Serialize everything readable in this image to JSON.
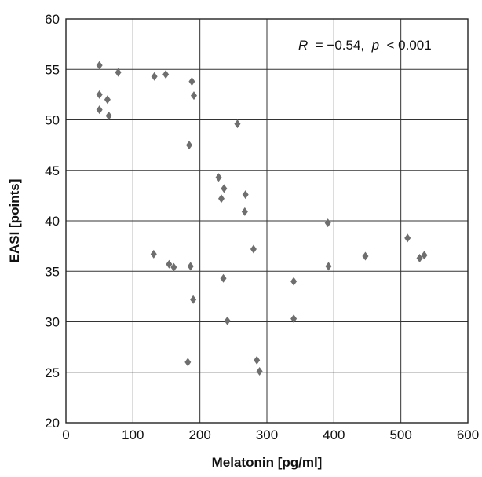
{
  "chart_data": {
    "type": "scatter",
    "xlabel": "Melatonin [pg/ml]",
    "ylabel": "EASI [points]",
    "xlim": [
      0,
      600
    ],
    "ylim": [
      20,
      60
    ],
    "xticks": [
      0,
      100,
      200,
      300,
      400,
      500,
      600
    ],
    "yticks": [
      20,
      25,
      30,
      35,
      40,
      45,
      50,
      55,
      60
    ],
    "grid": true,
    "annotation": {
      "r_symbol": "R",
      "r_value": " = −0.54, ",
      "p_symbol": "p",
      "p_value": " < 0.001"
    },
    "marker_color": "#6e6e6e",
    "series": [
      {
        "points": [
          [
            50,
            55.4
          ],
          [
            50,
            52.5
          ],
          [
            50,
            51.0
          ],
          [
            62,
            52.0
          ],
          [
            64,
            50.4
          ],
          [
            78,
            54.7
          ],
          [
            132,
            54.3
          ],
          [
            149,
            54.5
          ],
          [
            188,
            53.8
          ],
          [
            191,
            52.4
          ],
          [
            256,
            49.6
          ],
          [
            184,
            47.5
          ],
          [
            228,
            44.3
          ],
          [
            236,
            43.2
          ],
          [
            232,
            42.2
          ],
          [
            268,
            42.6
          ],
          [
            267,
            40.9
          ],
          [
            280,
            37.2
          ],
          [
            131,
            36.7
          ],
          [
            154,
            35.7
          ],
          [
            161,
            35.4
          ],
          [
            186,
            35.5
          ],
          [
            235,
            34.3
          ],
          [
            190,
            32.2
          ],
          [
            241,
            30.1
          ],
          [
            182,
            26.0
          ],
          [
            285,
            26.2
          ],
          [
            289,
            25.1
          ],
          [
            340,
            34.0
          ],
          [
            340,
            30.3
          ],
          [
            391,
            39.8
          ],
          [
            392,
            35.5
          ],
          [
            447,
            36.5
          ],
          [
            510,
            38.3
          ],
          [
            528,
            36.3
          ],
          [
            535,
            36.6
          ]
        ]
      }
    ]
  }
}
